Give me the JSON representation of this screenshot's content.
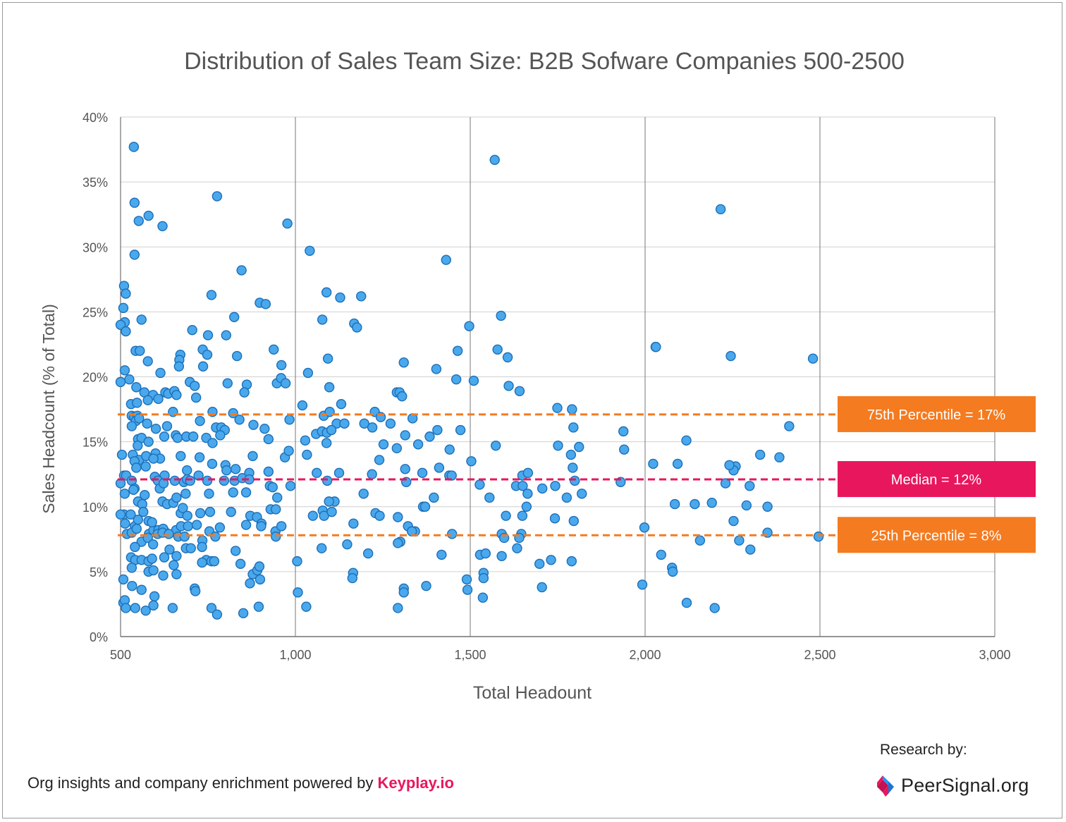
{
  "chart_data": {
    "type": "scatter",
    "title": "Distribution of Sales Team Size: B2B Sofware Companies 500-2500",
    "xlabel": "Total Headount",
    "ylabel": "Sales Headcount (% of Total)",
    "xlim": [
      500,
      3000
    ],
    "ylim": [
      0,
      40
    ],
    "x_ticks": [
      500,
      1000,
      1500,
      2000,
      2500,
      3000
    ],
    "x_tick_labels": [
      "500",
      "1,000",
      "1,500",
      "2,000",
      "2,500",
      "3,000"
    ],
    "y_ticks": [
      0,
      5,
      10,
      15,
      20,
      25,
      30,
      35,
      40
    ],
    "y_tick_labels": [
      "0%",
      "5%",
      "10%",
      "15%",
      "20%",
      "25%",
      "30%",
      "35%",
      "40%"
    ],
    "grid": "vertical and horizontal",
    "colors": {
      "point_fill": "#4aa8ec",
      "point_stroke": "#1c6fb8",
      "p75": "#f47b20",
      "median": "#e8175d",
      "p25": "#f47b20"
    },
    "reference_lines": [
      {
        "label": "75th Percentile = 17%",
        "value": 17.1,
        "color": "#f47b20"
      },
      {
        "label": "Median = 12%",
        "value": 12.1,
        "color": "#e8175d"
      },
      {
        "label": "25th Percentile = 8%",
        "value": 7.8,
        "color": "#f47b20"
      }
    ],
    "points": [
      [
        538,
        37.7
      ],
      [
        1570,
        36.7
      ],
      [
        776,
        33.9
      ],
      [
        540,
        33.4
      ],
      [
        2216,
        32.9
      ],
      [
        580,
        32.4
      ],
      [
        552,
        32.0
      ],
      [
        620,
        31.6
      ],
      [
        977,
        31.8
      ],
      [
        1041,
        29.7
      ],
      [
        540,
        29.4
      ],
      [
        1431,
        29.0
      ],
      [
        846,
        28.2
      ],
      [
        510,
        27.0
      ],
      [
        515,
        26.4
      ],
      [
        760,
        26.3
      ],
      [
        1089,
        26.5
      ],
      [
        1128,
        26.1
      ],
      [
        1188,
        26.2
      ],
      [
        898,
        25.7
      ],
      [
        915,
        25.6
      ],
      [
        508,
        25.3
      ],
      [
        1588,
        24.7
      ],
      [
        825,
        24.6
      ],
      [
        560,
        24.4
      ],
      [
        1077,
        24.4
      ],
      [
        512,
        24.2
      ],
      [
        500,
        24.0
      ],
      [
        1497,
        23.9
      ],
      [
        1168,
        24.1
      ],
      [
        1176,
        23.8
      ],
      [
        515,
        23.5
      ],
      [
        705,
        23.6
      ],
      [
        750,
        23.2
      ],
      [
        802,
        23.2
      ],
      [
        2030,
        22.3
      ],
      [
        2031,
        22.3
      ],
      [
        543,
        22.0
      ],
      [
        555,
        22.0
      ],
      [
        735,
        22.1
      ],
      [
        748,
        21.7
      ],
      [
        671,
        21.7
      ],
      [
        668,
        21.3
      ],
      [
        833,
        21.6
      ],
      [
        938,
        22.1
      ],
      [
        1093,
        21.4
      ],
      [
        1464,
        22.0
      ],
      [
        1578,
        22.1
      ],
      [
        1607,
        21.5
      ],
      [
        2245,
        21.6
      ],
      [
        2480,
        21.4
      ],
      [
        578,
        21.2
      ],
      [
        1310,
        21.1
      ],
      [
        736,
        20.8
      ],
      [
        960,
        20.9
      ],
      [
        512,
        20.5
      ],
      [
        614,
        20.3
      ],
      [
        1036,
        20.3
      ],
      [
        667,
        20.8
      ],
      [
        1403,
        20.6
      ],
      [
        525,
        19.8
      ],
      [
        500,
        19.6
      ],
      [
        698,
        19.6
      ],
      [
        712,
        19.3
      ],
      [
        806,
        19.5
      ],
      [
        861,
        19.4
      ],
      [
        947,
        19.5
      ],
      [
        959,
        19.9
      ],
      [
        972,
        19.5
      ],
      [
        1097,
        19.2
      ],
      [
        1460,
        19.8
      ],
      [
        1510,
        19.7
      ],
      [
        1610,
        19.3
      ],
      [
        1641,
        18.9
      ],
      [
        545,
        19.2
      ],
      [
        568,
        18.8
      ],
      [
        593,
        18.6
      ],
      [
        628,
        18.8
      ],
      [
        636,
        18.7
      ],
      [
        654,
        18.9
      ],
      [
        660,
        18.6
      ],
      [
        716,
        18.4
      ],
      [
        854,
        18.8
      ],
      [
        1290,
        18.8
      ],
      [
        1298,
        18.8
      ],
      [
        1305,
        18.5
      ],
      [
        530,
        17.9
      ],
      [
        547,
        18.0
      ],
      [
        578,
        18.2
      ],
      [
        608,
        18.3
      ],
      [
        1020,
        17.8
      ],
      [
        1131,
        17.9
      ],
      [
        1749,
        17.6
      ],
      [
        1791,
        17.5
      ],
      [
        532,
        17.0
      ],
      [
        539,
        16.9
      ],
      [
        548,
        17.0
      ],
      [
        544,
        16.6
      ],
      [
        553,
        16.8
      ],
      [
        650,
        17.3
      ],
      [
        763,
        17.3
      ],
      [
        822,
        17.2
      ],
      [
        1081,
        17.0
      ],
      [
        1098,
        17.3
      ],
      [
        1227,
        17.3
      ],
      [
        1244,
        16.9
      ],
      [
        1335,
        16.8
      ],
      [
        532,
        16.2
      ],
      [
        576,
        16.4
      ],
      [
        601,
        16.0
      ],
      [
        633,
        16.2
      ],
      [
        727,
        16.6
      ],
      [
        773,
        16.1
      ],
      [
        788,
        16.1
      ],
      [
        798,
        15.9
      ],
      [
        840,
        16.7
      ],
      [
        880,
        16.3
      ],
      [
        912,
        16.0
      ],
      [
        983,
        16.7
      ],
      [
        1118,
        16.4
      ],
      [
        1140,
        16.4
      ],
      [
        1197,
        16.4
      ],
      [
        1220,
        16.1
      ],
      [
        1272,
        16.4
      ],
      [
        1406,
        15.9
      ],
      [
        1472,
        15.9
      ],
      [
        1795,
        16.1
      ],
      [
        1938,
        15.8
      ],
      [
        2412,
        16.2
      ],
      [
        550,
        15.2
      ],
      [
        560,
        15.3
      ],
      [
        580,
        15.0
      ],
      [
        625,
        15.4
      ],
      [
        658,
        15.5
      ],
      [
        663,
        15.3
      ],
      [
        688,
        15.4
      ],
      [
        708,
        15.4
      ],
      [
        745,
        15.3
      ],
      [
        763,
        14.9
      ],
      [
        785,
        15.5
      ],
      [
        923,
        15.2
      ],
      [
        1028,
        15.1
      ],
      [
        1059,
        15.6
      ],
      [
        1076,
        15.8
      ],
      [
        1090,
        15.7
      ],
      [
        1103,
        15.9
      ],
      [
        1252,
        14.8
      ],
      [
        1314,
        15.5
      ],
      [
        1384,
        15.4
      ],
      [
        1573,
        14.7
      ],
      [
        1751,
        14.7
      ],
      [
        1811,
        14.6
      ],
      [
        1940,
        14.4
      ],
      [
        2118,
        15.1
      ],
      [
        549,
        14.7
      ],
      [
        504,
        14.0
      ],
      [
        535,
        14.0
      ],
      [
        553,
        13.6
      ],
      [
        573,
        13.9
      ],
      [
        600,
        14.1
      ],
      [
        613,
        13.7
      ],
      [
        672,
        13.9
      ],
      [
        726,
        13.8
      ],
      [
        878,
        13.9
      ],
      [
        970,
        13.8
      ],
      [
        981,
        14.3
      ],
      [
        1033,
        14.0
      ],
      [
        1089,
        14.9
      ],
      [
        1240,
        13.6
      ],
      [
        1290,
        14.5
      ],
      [
        1351,
        14.8
      ],
      [
        1441,
        14.4
      ],
      [
        1503,
        13.5
      ],
      [
        1788,
        14.0
      ],
      [
        2023,
        13.3
      ],
      [
        2093,
        13.3
      ],
      [
        2259,
        13.1
      ],
      [
        2253,
        12.8
      ],
      [
        2329,
        14.0
      ],
      [
        2384,
        13.8
      ],
      [
        540,
        13.5
      ],
      [
        545,
        13.0
      ],
      [
        572,
        13.1
      ],
      [
        594,
        13.7
      ],
      [
        626,
        12.4
      ],
      [
        690,
        12.8
      ],
      [
        723,
        12.4
      ],
      [
        762,
        13.3
      ],
      [
        800,
        13.2
      ],
      [
        803,
        12.8
      ],
      [
        829,
        12.9
      ],
      [
        868,
        12.6
      ],
      [
        923,
        12.7
      ],
      [
        1061,
        12.6
      ],
      [
        1125,
        12.6
      ],
      [
        1219,
        12.5
      ],
      [
        1314,
        12.9
      ],
      [
        1363,
        12.6
      ],
      [
        1411,
        13.0
      ],
      [
        1440,
        12.4
      ],
      [
        1447,
        12.4
      ],
      [
        1649,
        12.4
      ],
      [
        1665,
        12.6
      ],
      [
        1793,
        13.0
      ],
      [
        2241,
        13.2
      ],
      [
        510,
        12.4
      ],
      [
        516,
        12.4
      ],
      [
        532,
        12.0
      ],
      [
        540,
        11.4
      ],
      [
        598,
        12.3
      ],
      [
        607,
        12.0
      ],
      [
        612,
        11.4
      ],
      [
        623,
        11.8
      ],
      [
        655,
        12.0
      ],
      [
        681,
        11.9
      ],
      [
        690,
        12.1
      ],
      [
        699,
        12.0
      ],
      [
        748,
        12.0
      ],
      [
        796,
        12.0
      ],
      [
        826,
        12.0
      ],
      [
        848,
        12.2
      ],
      [
        868,
        12.1
      ],
      [
        927,
        11.6
      ],
      [
        935,
        11.5
      ],
      [
        986,
        11.6
      ],
      [
        1091,
        12.0
      ],
      [
        1317,
        11.9
      ],
      [
        1527,
        11.7
      ],
      [
        1631,
        11.6
      ],
      [
        1650,
        11.6
      ],
      [
        1706,
        11.4
      ],
      [
        1743,
        11.6
      ],
      [
        1799,
        12.0
      ],
      [
        1930,
        11.9
      ],
      [
        2230,
        11.8
      ],
      [
        2299,
        11.6
      ],
      [
        500,
        11.8
      ],
      [
        512,
        11.0
      ],
      [
        537,
        11.3
      ],
      [
        569,
        10.9
      ],
      [
        620,
        10.4
      ],
      [
        633,
        10.2
      ],
      [
        651,
        10.3
      ],
      [
        660,
        10.7
      ],
      [
        686,
        11.0
      ],
      [
        753,
        11.0
      ],
      [
        822,
        11.1
      ],
      [
        859,
        11.1
      ],
      [
        948,
        10.7
      ],
      [
        1112,
        10.4
      ],
      [
        1096,
        10.4
      ],
      [
        1195,
        11.0
      ],
      [
        1365,
        10.0
      ],
      [
        1371,
        10.0
      ],
      [
        1396,
        10.7
      ],
      [
        1555,
        10.7
      ],
      [
        1664,
        11.0
      ],
      [
        1776,
        10.7
      ],
      [
        1819,
        11.0
      ],
      [
        510,
        9.4
      ],
      [
        550,
        10.4
      ],
      [
        562,
        10.2
      ],
      [
        565,
        9.6
      ],
      [
        580,
        8.9
      ],
      [
        581,
        7.9
      ],
      [
        594,
        8.2
      ],
      [
        608,
        8.2
      ],
      [
        626,
        8.1
      ],
      [
        672,
        9.5
      ],
      [
        678,
        9.9
      ],
      [
        691,
        9.3
      ],
      [
        728,
        9.5
      ],
      [
        756,
        9.6
      ],
      [
        816,
        9.6
      ],
      [
        871,
        9.3
      ],
      [
        890,
        9.2
      ],
      [
        903,
        8.7
      ],
      [
        929,
        9.8
      ],
      [
        944,
        9.8
      ],
      [
        1050,
        9.3
      ],
      [
        1078,
        9.7
      ],
      [
        1082,
        9.3
      ],
      [
        1104,
        9.6
      ],
      [
        1229,
        9.5
      ],
      [
        1241,
        9.3
      ],
      [
        1293,
        9.2
      ],
      [
        1322,
        8.5
      ],
      [
        1342,
        8.1
      ],
      [
        1602,
        9.3
      ],
      [
        1649,
        9.3
      ],
      [
        1661,
        10.0
      ],
      [
        1742,
        9.1
      ],
      [
        1796,
        8.9
      ],
      [
        2085,
        10.2
      ],
      [
        2142,
        10.2
      ],
      [
        2191,
        10.3
      ],
      [
        2290,
        10.1
      ],
      [
        2350,
        10.0
      ],
      [
        500,
        9.4
      ],
      [
        513,
        8.7
      ],
      [
        529,
        9.4
      ],
      [
        541,
        8.5
      ],
      [
        550,
        9.0
      ],
      [
        590,
        8.8
      ],
      [
        606,
        7.9
      ],
      [
        622,
        8.3
      ],
      [
        659,
        8.2
      ],
      [
        673,
        8.5
      ],
      [
        693,
        8.5
      ],
      [
        718,
        8.6
      ],
      [
        754,
        8.1
      ],
      [
        784,
        8.4
      ],
      [
        859,
        8.6
      ],
      [
        902,
        8.5
      ],
      [
        943,
        8.1
      ],
      [
        960,
        8.5
      ],
      [
        1166,
        8.7
      ],
      [
        1300,
        7.3
      ],
      [
        1333,
        8.1
      ],
      [
        1448,
        7.9
      ],
      [
        1590,
        7.9
      ],
      [
        1646,
        7.9
      ],
      [
        1998,
        8.4
      ],
      [
        2253,
        8.9
      ],
      [
        2350,
        8.0
      ],
      [
        518,
        7.9
      ],
      [
        532,
        8.0
      ],
      [
        546,
        8.3
      ],
      [
        560,
        7.3
      ],
      [
        578,
        7.6
      ],
      [
        593,
        7.1
      ],
      [
        620,
        8.0
      ],
      [
        638,
        7.9
      ],
      [
        665,
        7.7
      ],
      [
        683,
        7.7
      ],
      [
        734,
        7.4
      ],
      [
        771,
        7.7
      ],
      [
        944,
        7.7
      ],
      [
        1293,
        7.2
      ],
      [
        1597,
        7.6
      ],
      [
        1640,
        7.6
      ],
      [
        2157,
        7.4
      ],
      [
        2269,
        7.4
      ],
      [
        2496,
        7.7
      ],
      [
        541,
        6.9
      ],
      [
        530,
        6.1
      ],
      [
        542,
        5.9
      ],
      [
        560,
        5.9
      ],
      [
        580,
        5.8
      ],
      [
        590,
        6.0
      ],
      [
        625,
        6.1
      ],
      [
        640,
        6.7
      ],
      [
        660,
        6.2
      ],
      [
        687,
        6.8
      ],
      [
        701,
        6.8
      ],
      [
        733,
        6.9
      ],
      [
        745,
        5.9
      ],
      [
        760,
        5.8
      ],
      [
        768,
        5.8
      ],
      [
        829,
        6.6
      ],
      [
        1075,
        6.8
      ],
      [
        1148,
        7.1
      ],
      [
        1208,
        6.4
      ],
      [
        1418,
        6.3
      ],
      [
        1528,
        6.3
      ],
      [
        1544,
        6.4
      ],
      [
        1590,
        6.2
      ],
      [
        1634,
        6.8
      ],
      [
        1731,
        5.9
      ],
      [
        2046,
        6.3
      ],
      [
        2301,
        6.7
      ],
      [
        532,
        5.3
      ],
      [
        580,
        5.0
      ],
      [
        594,
        5.1
      ],
      [
        622,
        4.7
      ],
      [
        652,
        5.5
      ],
      [
        660,
        4.8
      ],
      [
        733,
        5.7
      ],
      [
        843,
        5.6
      ],
      [
        878,
        4.8
      ],
      [
        891,
        5.1
      ],
      [
        897,
        5.4
      ],
      [
        1005,
        5.8
      ],
      [
        1165,
        4.9
      ],
      [
        1538,
        4.9
      ],
      [
        1698,
        5.6
      ],
      [
        1790,
        5.8
      ],
      [
        2077,
        5.3
      ],
      [
        2079,
        5.0
      ],
      [
        508,
        4.4
      ],
      [
        533,
        3.9
      ],
      [
        560,
        3.6
      ],
      [
        597,
        3.1
      ],
      [
        712,
        3.7
      ],
      [
        714,
        3.5
      ],
      [
        870,
        4.1
      ],
      [
        899,
        4.4
      ],
      [
        1007,
        3.4
      ],
      [
        1163,
        4.5
      ],
      [
        1490,
        4.4
      ],
      [
        1492,
        3.6
      ],
      [
        1538,
        4.5
      ],
      [
        1310,
        3.7
      ],
      [
        1310,
        3.4
      ],
      [
        1374,
        3.9
      ],
      [
        1705,
        3.8
      ],
      [
        1992,
        4.0
      ],
      [
        508,
        2.6
      ],
      [
        512,
        2.8
      ],
      [
        515,
        2.2
      ],
      [
        542,
        2.2
      ],
      [
        572,
        2.0
      ],
      [
        594,
        2.4
      ],
      [
        649,
        2.2
      ],
      [
        760,
        2.2
      ],
      [
        776,
        1.7
      ],
      [
        851,
        1.8
      ],
      [
        895,
        2.3
      ],
      [
        1031,
        2.3
      ],
      [
        1293,
        2.2
      ],
      [
        1536,
        3.0
      ],
      [
        2119,
        2.6
      ],
      [
        2199,
        2.2
      ]
    ]
  },
  "footer": {
    "powered_by_text": "Org insights and company enrichment powered by ",
    "powered_by_brand": "Keyplay.io",
    "research_by": "Research by:",
    "research_brand": "PeerSignal.org"
  }
}
